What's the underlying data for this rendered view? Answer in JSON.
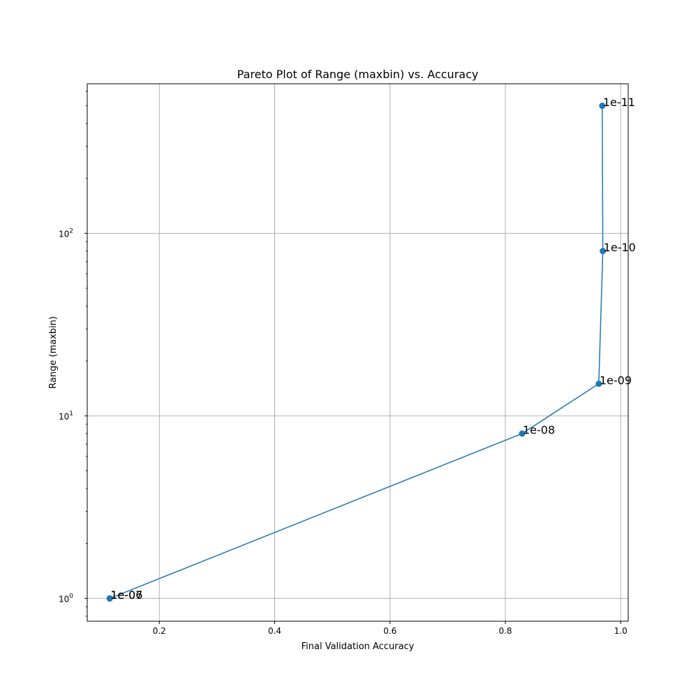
{
  "chart_data": {
    "type": "line",
    "title": "Pareto Plot of Range (maxbin) vs. Accuracy",
    "xlabel": "Final Validation Accuracy",
    "ylabel": "Range (maxbin)",
    "xlim": [
      0.075,
      1.013
    ],
    "ylim": [
      0.75,
      660
    ],
    "yscale": "log",
    "grid": true,
    "line_color": "#1f77b4",
    "x_ticks": [
      {
        "value": 0.2,
        "label": "0.2"
      },
      {
        "value": 0.4,
        "label": "0.4"
      },
      {
        "value": 0.6,
        "label": "0.6"
      },
      {
        "value": 0.8,
        "label": "0.8"
      },
      {
        "value": 1.0,
        "label": "1.0"
      }
    ],
    "y_ticks": [
      {
        "value": 1,
        "base": "10",
        "exp": "0"
      },
      {
        "value": 10,
        "base": "10",
        "exp": "1"
      },
      {
        "value": 100,
        "base": "10",
        "exp": "2"
      }
    ],
    "series": [
      {
        "points": [
          {
            "x": 0.114,
            "y": 1,
            "label": "1e-07"
          },
          {
            "x": 0.114,
            "y": 1,
            "label": "1e-06"
          },
          {
            "x": 0.829,
            "y": 8,
            "label": "1e-08"
          },
          {
            "x": 0.962,
            "y": 15,
            "label": "1e-09"
          },
          {
            "x": 0.969,
            "y": 80,
            "label": "1e-10"
          },
          {
            "x": 0.968,
            "y": 500,
            "label": "1e-11"
          }
        ]
      }
    ]
  }
}
